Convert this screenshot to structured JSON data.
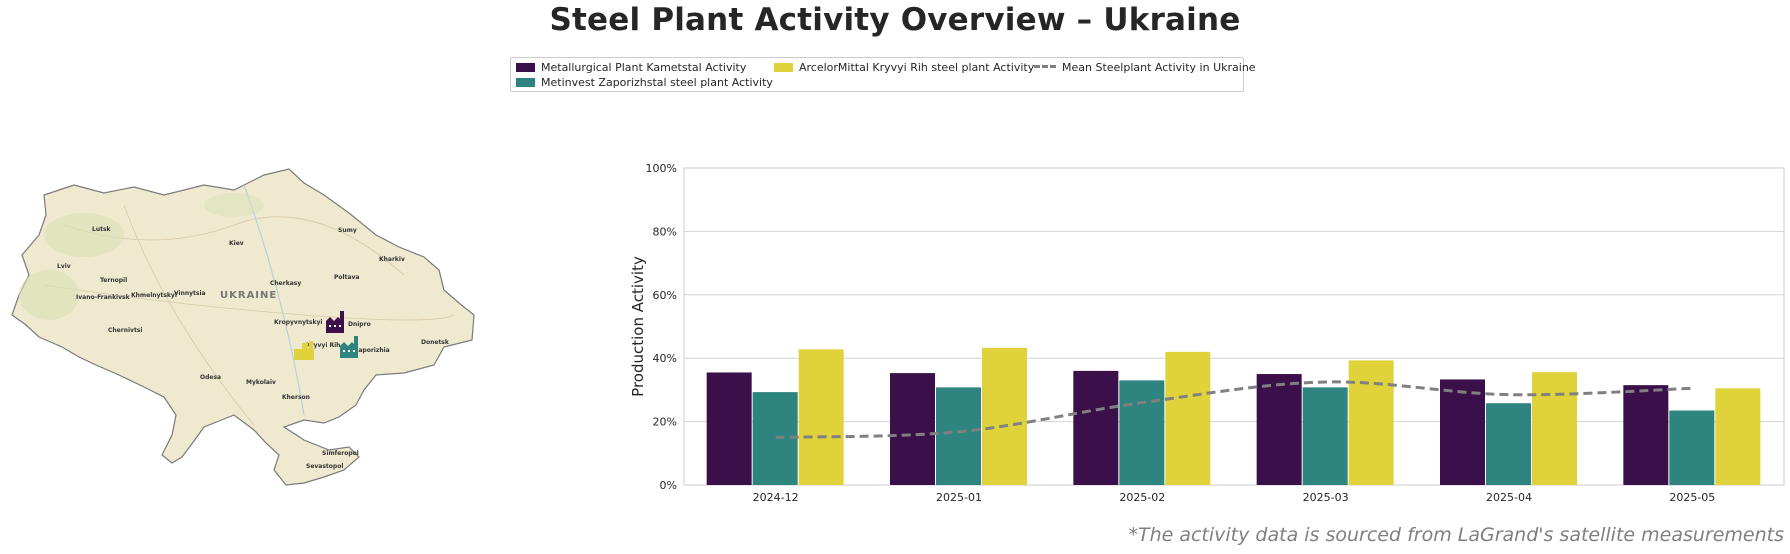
{
  "title": "Steel Plant Activity Overview – Ukraine",
  "footnote": "*The activity data is sourced from LaGrand's satellite measurements",
  "colors": {
    "kametstal": "#3b0f4a",
    "zaporizhstal": "#2e8580",
    "kryvyi_rih": "#e0d23a",
    "mean": "#808080"
  },
  "legend": [
    {
      "label": "Metallurgical Plant Kametstal Activity",
      "color": "#3b0f4a",
      "style": "bar"
    },
    {
      "label": "Metinvest Zaporizhstal steel plant Activity",
      "color": "#2e8580",
      "style": "bar"
    },
    {
      "label": "ArcelorMittal Kryvyi Rih steel plant Activity",
      "color": "#e0d23a",
      "style": "bar"
    },
    {
      "label": "Mean Steelplant Activity in Ukraine",
      "color": "#808080",
      "style": "dashed-line"
    }
  ],
  "map": {
    "country_label": "UKRAINE",
    "cities": [
      "Lutsk",
      "Kiev",
      "Kharkiv",
      "Lviv",
      "Ternopil",
      "Khmelnytskyi",
      "Vinnytsia",
      "Cherkasy",
      "Poltava",
      "Ivano-Frankivsk",
      "Chernivtsi",
      "Kropyvnytskyi",
      "Dnipro",
      "Donetsk",
      "Kryvyi Rih",
      "Zaporizhia",
      "Mykolaiv",
      "Kherson",
      "Simferopol",
      "Sevastopol",
      "Sumy",
      "Odesa"
    ],
    "plant_icons": [
      "factory-icon-kametstal",
      "factory-icon-zaporizhstal",
      "factory-icon-kryvyi-rih"
    ]
  },
  "chart_data": {
    "type": "bar",
    "categories": [
      "2024-12",
      "2025-01",
      "2025-02",
      "2025-03",
      "2025-04",
      "2025-05"
    ],
    "series": [
      {
        "name": "Metallurgical Plant Kametstal Activity",
        "values": [
          35.5,
          35.3,
          36.0,
          35.0,
          33.3,
          31.5
        ]
      },
      {
        "name": "Metinvest Zaporizhstal steel plant Activity",
        "values": [
          29.3,
          30.8,
          33.0,
          30.8,
          25.8,
          23.5
        ]
      },
      {
        "name": "ArcelorMittal Kryvyi Rih steel plant Activity",
        "values": [
          42.8,
          43.3,
          42.0,
          39.3,
          35.6,
          30.5
        ]
      }
    ],
    "line_series": {
      "name": "Mean Steelplant Activity in Ukraine",
      "values": [
        15.0,
        16.8,
        26.0,
        32.5,
        28.5,
        30.5
      ],
      "style": "dashed"
    },
    "ylabel": "Production Activity",
    "xlabel": "",
    "ylim": [
      0,
      100
    ],
    "yticks": [
      "0%",
      "20%",
      "40%",
      "60%",
      "80%",
      "100%"
    ],
    "grid": "horizontal"
  }
}
